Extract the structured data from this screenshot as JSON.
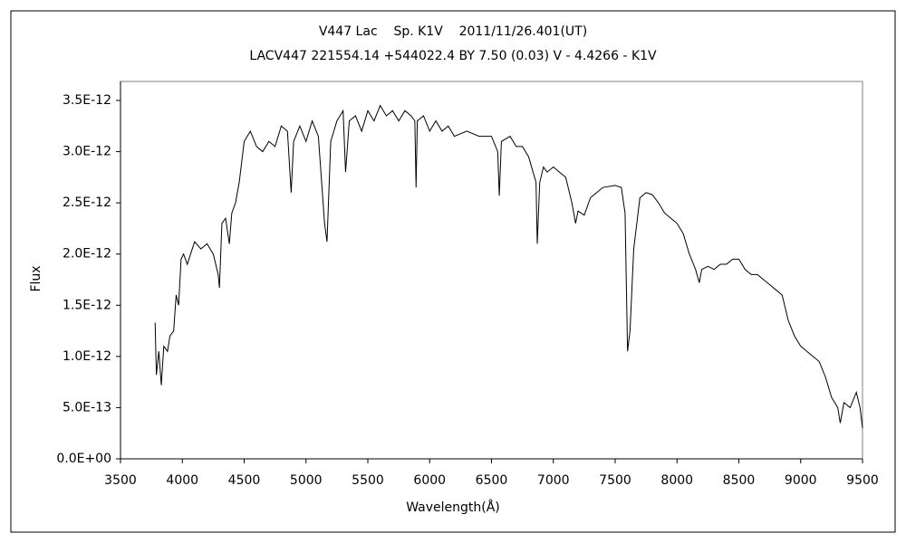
{
  "chart_data": {
    "type": "line",
    "title": "V447 Lac    Sp. K1V    2011/11/26.401(UT)",
    "subtitle": "LACV447 221554.14 +544022.4 BY 7.50 (0.03) V - 4.4266 - K1V",
    "x_label": "Wavelength(Å)",
    "y_label": "Flux",
    "xlim": [
      3500,
      9500
    ],
    "xticks": [
      3500,
      4000,
      4500,
      5000,
      5500,
      6000,
      6500,
      7000,
      7500,
      8000,
      8500,
      9000,
      9500
    ],
    "ylim": [
      0,
      3.5e-12
    ],
    "yticks": [
      {
        "value": 0,
        "label": "0.0E+00"
      },
      {
        "value": 5e-13,
        "label": "5.0E-13"
      },
      {
        "value": 1e-12,
        "label": "1.0E-12"
      },
      {
        "value": 1.5e-12,
        "label": "1.5E-12"
      },
      {
        "value": 2e-12,
        "label": "2.0E-12"
      },
      {
        "value": 2.5e-12,
        "label": "2.5E-12"
      },
      {
        "value": 3e-12,
        "label": "3.0E-12"
      },
      {
        "value": 3.5e-12,
        "label": "3.5E-12"
      }
    ],
    "grid": false,
    "series": [
      {
        "color": "#000000",
        "x": [
          3780,
          3790,
          3810,
          3830,
          3850,
          3880,
          3900,
          3930,
          3950,
          3970,
          3990,
          4010,
          4040,
          4080,
          4100,
          4150,
          4200,
          4250,
          4290,
          4300,
          4320,
          4350,
          4380,
          4400,
          4430,
          4460,
          4480,
          4500,
          4550,
          4600,
          4650,
          4700,
          4750,
          4800,
          4850,
          4880,
          4900,
          4950,
          5000,
          5050,
          5100,
          5150,
          5170,
          5200,
          5250,
          5300,
          5320,
          5350,
          5400,
          5450,
          5500,
          5550,
          5600,
          5650,
          5700,
          5750,
          5800,
          5850,
          5880,
          5890,
          5900,
          5950,
          6000,
          6050,
          6100,
          6150,
          6200,
          6300,
          6400,
          6500,
          6550,
          6563,
          6580,
          6650,
          6700,
          6750,
          6800,
          6860,
          6870,
          6890,
          6920,
          6950,
          7000,
          7050,
          7100,
          7150,
          7180,
          7200,
          7250,
          7300,
          7350,
          7400,
          7500,
          7550,
          7580,
          7600,
          7620,
          7650,
          7700,
          7750,
          7800,
          7850,
          7900,
          7950,
          8000,
          8050,
          8100,
          8150,
          8180,
          8200,
          8250,
          8300,
          8350,
          8400,
          8450,
          8500,
          8550,
          8600,
          8650,
          8700,
          8750,
          8800,
          8850,
          8900,
          8950,
          9000,
          9050,
          9100,
          9150,
          9200,
          9250,
          9300,
          9320,
          9350,
          9400,
          9450,
          9480,
          9500
        ],
        "values": [
          1.33e-12,
          8.2e-13,
          1.05e-12,
          7.2e-13,
          1.1e-12,
          1.05e-12,
          1.2e-12,
          1.25e-12,
          1.6e-12,
          1.5e-12,
          1.95e-12,
          2e-12,
          1.9e-12,
          2.05e-12,
          2.12e-12,
          2.05e-12,
          2.1e-12,
          2e-12,
          1.8e-12,
          1.67e-12,
          2.3e-12,
          2.35e-12,
          2.1e-12,
          2.4e-12,
          2.5e-12,
          2.7e-12,
          2.9e-12,
          3.1e-12,
          3.2e-12,
          3.05e-12,
          3e-12,
          3.1e-12,
          3.05e-12,
          3.25e-12,
          3.2e-12,
          2.6e-12,
          3.1e-12,
          3.25e-12,
          3.1e-12,
          3.3e-12,
          3.15e-12,
          2.3e-12,
          2.12e-12,
          3.1e-12,
          3.3e-12,
          3.4e-12,
          2.8e-12,
          3.3e-12,
          3.35e-12,
          3.2e-12,
          3.4e-12,
          3.3e-12,
          3.45e-12,
          3.35e-12,
          3.4e-12,
          3.3e-12,
          3.4e-12,
          3.35e-12,
          3.3e-12,
          2.65e-12,
          3.3e-12,
          3.35e-12,
          3.2e-12,
          3.3e-12,
          3.2e-12,
          3.25e-12,
          3.15e-12,
          3.2e-12,
          3.15e-12,
          3.15e-12,
          3e-12,
          2.57e-12,
          3.1e-12,
          3.15e-12,
          3.05e-12,
          3.05e-12,
          2.95e-12,
          2.7e-12,
          2.1e-12,
          2.7e-12,
          2.85e-12,
          2.8e-12,
          2.85e-12,
          2.8e-12,
          2.75e-12,
          2.5e-12,
          2.3e-12,
          2.42e-12,
          2.38e-12,
          2.55e-12,
          2.6e-12,
          2.65e-12,
          2.67e-12,
          2.65e-12,
          2.4e-12,
          1.05e-12,
          1.25e-12,
          2.05e-12,
          2.55e-12,
          2.6e-12,
          2.58e-12,
          2.5e-12,
          2.4e-12,
          2.35e-12,
          2.3e-12,
          2.2e-12,
          2e-12,
          1.85e-12,
          1.72e-12,
          1.85e-12,
          1.88e-12,
          1.85e-12,
          1.9e-12,
          1.9e-12,
          1.95e-12,
          1.95e-12,
          1.85e-12,
          1.8e-12,
          1.8e-12,
          1.75e-12,
          1.7e-12,
          1.65e-12,
          1.6e-12,
          1.35e-12,
          1.2e-12,
          1.1e-12,
          1.05e-12,
          1e-12,
          9.5e-13,
          8e-13,
          6e-13,
          5e-13,
          3.5e-13,
          5.5e-13,
          5e-13,
          6.5e-13,
          5e-13,
          3e-13
        ]
      }
    ]
  }
}
